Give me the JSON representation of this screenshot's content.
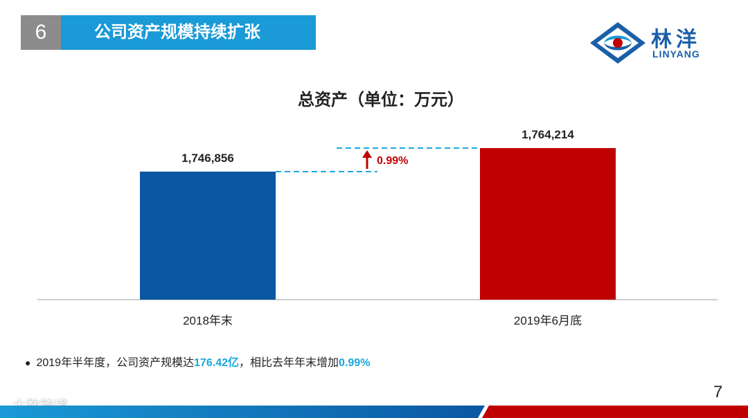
{
  "header": {
    "section_number": "6",
    "title": "公司资产规模持续扩张"
  },
  "logo": {
    "cn": "林洋",
    "en": "LINYANG"
  },
  "chart_data": {
    "type": "bar",
    "title": "总资产（单位：万元）",
    "categories": [
      "2018年末",
      "2019年6月底"
    ],
    "values": [
      1746856,
      1764214
    ],
    "value_labels": [
      "1,746,856",
      "1,764,214"
    ],
    "bar_colors": [
      "#0b57a4",
      "#c00000"
    ],
    "change_label": "0.99%",
    "change_color": "#c00000",
    "dash_color": "#1aa7df",
    "ylim": [
      0,
      1900000
    ],
    "grid": false,
    "legend": "none"
  },
  "note": {
    "prefix": "2019年半年度，公司资产规模达",
    "highlight1": "176.42亿",
    "middle": "，相比去年年末增加",
    "highlight2": "0.99%"
  },
  "page_number": "7",
  "watermark": "大数跨境"
}
